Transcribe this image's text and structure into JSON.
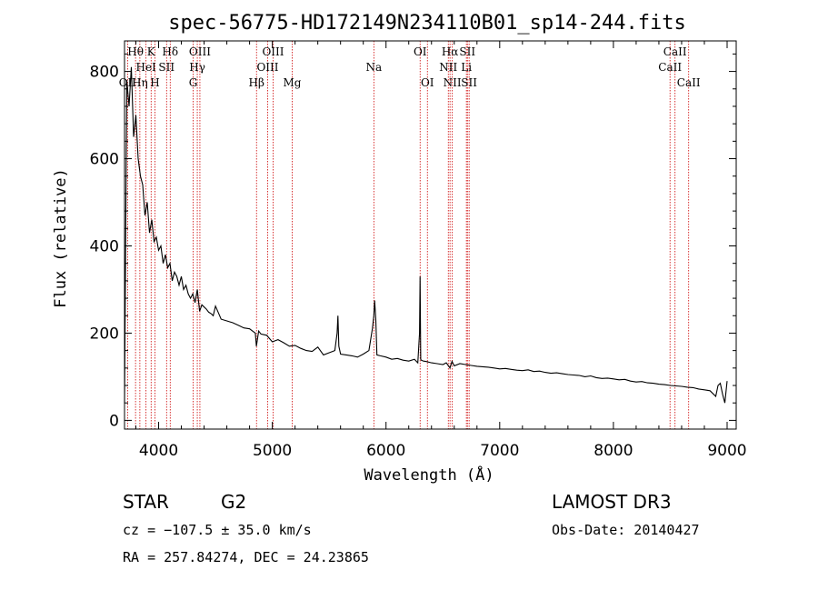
{
  "chart_data": {
    "type": "line",
    "title": "spec-56775-HD172149N234110B01_sp14-244.fits",
    "xlabel": "Wavelength (Å)",
    "ylabel": "Flux (relative)",
    "xlim": [
      3700,
      9080
    ],
    "ylim": [
      -20,
      870
    ],
    "xticks": [
      4000,
      5000,
      6000,
      7000,
      8000,
      9000
    ],
    "yticks": [
      0,
      200,
      400,
      600,
      800
    ],
    "series": [
      {
        "name": "flux",
        "x": [
          3700,
          3720,
          3740,
          3760,
          3780,
          3800,
          3820,
          3840,
          3860,
          3880,
          3900,
          3920,
          3940,
          3960,
          3980,
          4000,
          4020,
          4040,
          4060,
          4080,
          4100,
          4120,
          4140,
          4160,
          4180,
          4200,
          4220,
          4240,
          4260,
          4280,
          4300,
          4320,
          4340,
          4360,
          4380,
          4400,
          4420,
          4440,
          4460,
          4480,
          4500,
          4550,
          4600,
          4650,
          4700,
          4750,
          4800,
          4850,
          4860,
          4880,
          4900,
          4950,
          5000,
          5050,
          5100,
          5150,
          5200,
          5250,
          5300,
          5350,
          5400,
          5450,
          5500,
          5550,
          5570,
          5577,
          5585,
          5600,
          5650,
          5700,
          5750,
          5800,
          5850,
          5880,
          5893,
          5900,
          5910,
          5920,
          5950,
          6000,
          6050,
          6100,
          6150,
          6200,
          6250,
          6280,
          6295,
          6300,
          6305,
          6310,
          6330,
          6350,
          6400,
          6450,
          6500,
          6530,
          6563,
          6580,
          6600,
          6650,
          6700,
          6750,
          6800,
          6850,
          6900,
          6950,
          7000,
          7050,
          7100,
          7150,
          7200,
          7250,
          7300,
          7350,
          7400,
          7450,
          7500,
          7550,
          7600,
          7650,
          7700,
          7750,
          7800,
          7850,
          7900,
          7950,
          8000,
          8050,
          8100,
          8150,
          8200,
          8250,
          8300,
          8350,
          8400,
          8450,
          8500,
          8550,
          8600,
          8650,
          8700,
          8750,
          8800,
          8850,
          8900,
          8920,
          8940,
          8960,
          8980,
          9000
        ],
        "y": [
          40,
          780,
          720,
          810,
          650,
          700,
          600,
          560,
          540,
          470,
          500,
          430,
          460,
          410,
          420,
          390,
          400,
          360,
          380,
          350,
          360,
          320,
          340,
          330,
          310,
          330,
          300,
          310,
          290,
          280,
          290,
          270,
          300,
          250,
          265,
          260,
          255,
          248,
          245,
          240,
          262,
          232,
          228,
          224,
          218,
          212,
          210,
          200,
          170,
          205,
          198,
          195,
          180,
          185,
          178,
          170,
          172,
          165,
          160,
          158,
          168,
          150,
          155,
          160,
          200,
          240,
          170,
          152,
          150,
          148,
          145,
          152,
          160,
          210,
          240,
          275,
          230,
          150,
          148,
          145,
          140,
          142,
          138,
          136,
          140,
          132,
          200,
          330,
          140,
          138,
          136,
          135,
          132,
          130,
          128,
          132,
          120,
          135,
          125,
          130,
          128,
          126,
          124,
          123,
          122,
          120,
          118,
          119,
          117,
          115,
          114,
          116,
          112,
          113,
          110,
          108,
          109,
          107,
          105,
          104,
          103,
          100,
          102,
          98,
          96,
          97,
          95,
          93,
          94,
          90,
          88,
          89,
          86,
          85,
          83,
          82,
          80,
          79,
          78,
          76,
          75,
          72,
          70,
          68,
          55,
          80,
          85,
          60,
          40,
          90
        ]
      }
    ],
    "lines": [
      {
        "label": "OII",
        "wl": 3727,
        "row": 3
      },
      {
        "label": "Hθ",
        "wl": 3797,
        "row": 1
      },
      {
        "label": "HeI",
        "wl": 3889,
        "row": 2
      },
      {
        "label": "Hη",
        "wl": 3835,
        "row": 3
      },
      {
        "label": "K",
        "wl": 3934,
        "row": 1
      },
      {
        "label": "H",
        "wl": 3968,
        "row": 3
      },
      {
        "label": "SII",
        "wl": 4070,
        "row": 2
      },
      {
        "label": "Hδ",
        "wl": 4102,
        "row": 1
      },
      {
        "label": "OIII",
        "wl": 4363,
        "row": 1
      },
      {
        "label": "Hγ",
        "wl": 4340,
        "row": 2
      },
      {
        "label": "G",
        "wl": 4304,
        "row": 3
      },
      {
        "label": "Hβ",
        "wl": 4861,
        "row": 3
      },
      {
        "label": "OIII",
        "wl": 5007,
        "row": 1
      },
      {
        "label": "OIII",
        "wl": 4959,
        "row": 2
      },
      {
        "label": "Mg",
        "wl": 5175,
        "row": 3
      },
      {
        "label": "Na",
        "wl": 5893,
        "row": 2
      },
      {
        "label": "OI",
        "wl": 6300,
        "row": 1
      },
      {
        "label": "OI",
        "wl": 6364,
        "row": 3
      },
      {
        "label": "Hα",
        "wl": 6563,
        "row": 1
      },
      {
        "label": "SII",
        "wl": 6716,
        "row": 1
      },
      {
        "label": "NII",
        "wl": 6548,
        "row": 2
      },
      {
        "label": "Li",
        "wl": 6707,
        "row": 2
      },
      {
        "label": "NII",
        "wl": 6583,
        "row": 3
      },
      {
        "label": "SII",
        "wl": 6731,
        "row": 3
      },
      {
        "label": "CaII",
        "wl": 8542,
        "row": 1
      },
      {
        "label": "CaII",
        "wl": 8498,
        "row": 2
      },
      {
        "label": "CaII",
        "wl": 8662,
        "row": 3
      }
    ]
  },
  "info": {
    "class_label": "STAR",
    "subclass_label": "G2",
    "survey": "LAMOST DR3",
    "redshift": "cz = −107.5 ± 35.0 km/s",
    "obs_date": "Obs-Date: 20140427",
    "coords": "RA = 257.84274, DEC =  24.23865"
  },
  "colors": {
    "spectrum": "#000000",
    "line_marker": "#cc0000",
    "axis": "#000000"
  }
}
